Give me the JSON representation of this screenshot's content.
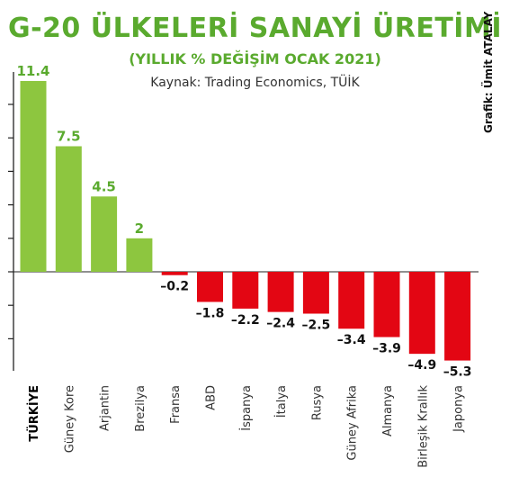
{
  "header": {
    "title": "G-20 ÜLKELERİ SANAYİ ÜRETİMİ",
    "subtitle": "(YILLIK % DEĞİŞİM OCAK 2021)",
    "source": "Kaynak: Trading Economics, TÜİK",
    "credit": "Grafik: Ümit ATALAY"
  },
  "colors": {
    "positive": "#8dc63f",
    "positive_label": "#5aaa2e",
    "negative": "#e30613",
    "negative_label": "#111111",
    "axis": "#222222"
  },
  "chart_data": {
    "type": "bar",
    "title": "G-20 ÜLKELERİ SANAYİ ÜRETİMİ",
    "subtitle": "(YILLIK % DEĞİŞİM OCAK 2021)",
    "categories": [
      "TÜRKİYE",
      "Güney Kore",
      "Arjantin",
      "Brezilya",
      "Fransa",
      "ABD",
      "İspanya",
      "İtalya",
      "Rusya",
      "Güney Afrika",
      "Almanya",
      "Birleşik Krallık",
      "Japonya"
    ],
    "values": [
      11.4,
      7.5,
      4.5,
      2,
      -0.2,
      -1.8,
      -2.2,
      -2.4,
      -2.5,
      -3.4,
      -3.9,
      -4.9,
      -5.3
    ],
    "value_labels": [
      "11.4",
      "7.5",
      "4.5",
      "2",
      "–0.2",
      "–1.8",
      "–2.2",
      "–2.4",
      "–2.5",
      "–3.4",
      "–3.9",
      "–4.9",
      "–5.3"
    ],
    "highlight": "TÜRKİYE",
    "ylim": [
      -6,
      12
    ],
    "grid": false
  }
}
